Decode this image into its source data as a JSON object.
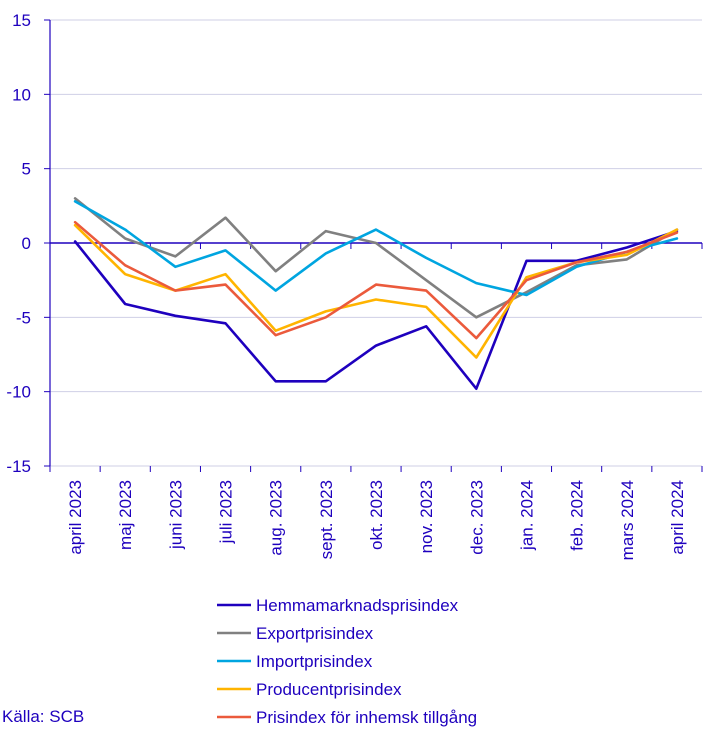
{
  "chart_data": {
    "type": "line",
    "title": "",
    "xlabel": "",
    "ylabel": "",
    "ylim": [
      -15,
      15
    ],
    "yticks": [
      -15,
      -10,
      -5,
      0,
      5,
      10,
      15
    ],
    "grid": true,
    "legend_position": "bottom",
    "categories": [
      "april 2023",
      "maj 2023",
      "juni 2023",
      "juli 2023",
      "aug. 2023",
      "sept. 2023",
      "okt. 2023",
      "nov. 2023",
      "dec. 2023",
      "jan. 2024",
      "feb. 2024",
      "mars 2024",
      "april 2024"
    ],
    "series": [
      {
        "name": "Hemmamarknadsprisindex",
        "color": "#1e00be",
        "values": [
          0.1,
          -4.1,
          -4.9,
          -5.4,
          -9.3,
          -9.3,
          -6.9,
          -5.6,
          -9.8,
          -1.2,
          -1.2,
          -0.3,
          0.8
        ]
      },
      {
        "name": "Exportprisindex",
        "color": "#808080",
        "values": [
          3.0,
          0.3,
          -0.9,
          1.7,
          -1.9,
          0.8,
          0.0,
          -2.5,
          -5.0,
          -3.3,
          -1.5,
          -1.1,
          0.9
        ]
      },
      {
        "name": "Importprisindex",
        "color": "#00a5e0",
        "values": [
          2.8,
          0.9,
          -1.6,
          -0.5,
          -3.2,
          -0.7,
          0.9,
          -1.0,
          -2.7,
          -3.5,
          -1.6,
          -0.6,
          0.3
        ]
      },
      {
        "name": "Producentprisindex",
        "color": "#ffb400",
        "values": [
          1.2,
          -2.1,
          -3.2,
          -2.1,
          -5.9,
          -4.6,
          -3.8,
          -4.3,
          -7.7,
          -2.3,
          -1.3,
          -0.8,
          0.9
        ]
      },
      {
        "name": "Prisindex för inhemsk tillgång",
        "color": "#eb5a3c",
        "values": [
          1.4,
          -1.5,
          -3.2,
          -2.8,
          -6.2,
          -5.0,
          -2.8,
          -3.2,
          -6.4,
          -2.5,
          -1.3,
          -0.6,
          0.7
        ]
      }
    ]
  },
  "source": "Källa: SCB"
}
